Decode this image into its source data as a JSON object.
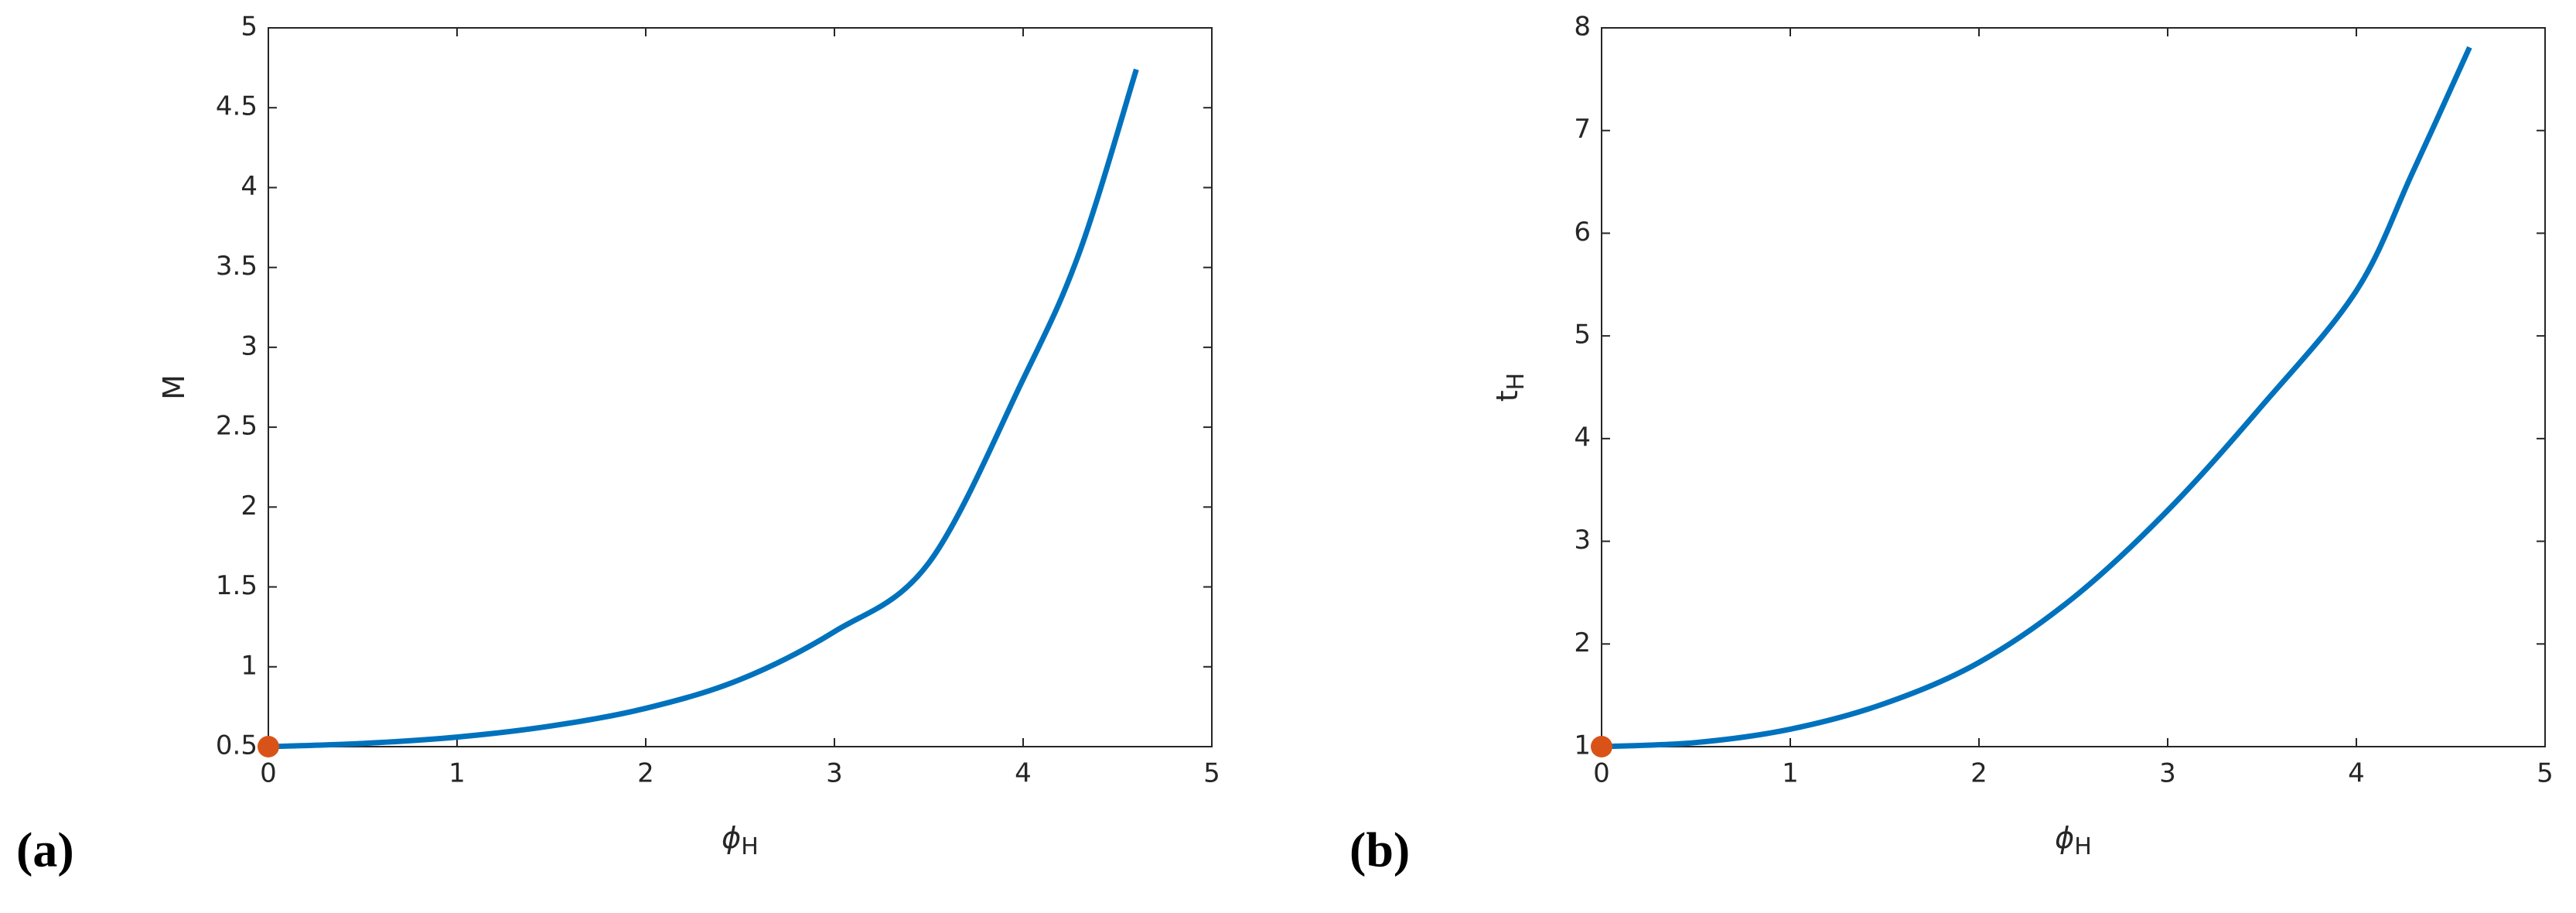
{
  "chart_data": [
    {
      "type": "line",
      "panel_label": "(a)",
      "xlabel": "ϕ",
      "xlabel_sub": "H",
      "ylabel": "M",
      "xlim": [
        0,
        5
      ],
      "xticks": [
        0,
        1,
        2,
        3,
        4,
        5
      ],
      "ylim": [
        0.5,
        5
      ],
      "yticks": [
        0.5,
        1,
        1.5,
        2,
        2.5,
        3,
        3.5,
        4,
        4.5,
        5
      ],
      "series": [
        {
          "color": "#0072bd",
          "x": [
            0,
            0.5,
            1,
            1.5,
            2,
            2.5,
            3,
            3.5,
            4,
            4.3,
            4.6
          ],
          "values": [
            0.5,
            0.52,
            0.56,
            0.63,
            0.74,
            0.92,
            1.22,
            1.65,
            2.8,
            3.6,
            4.74
          ]
        },
        {
          "color": "#d95319",
          "marker": "circle",
          "x": [
            0
          ],
          "values": [
            0.5
          ]
        }
      ]
    },
    {
      "type": "line",
      "panel_label": "(b)",
      "xlabel": "ϕ",
      "xlabel_sub": "H",
      "ylabel": "t",
      "ylabel_sub": "H",
      "xlim": [
        0,
        5
      ],
      "xticks": [
        0,
        1,
        2,
        3,
        4,
        5
      ],
      "ylim": [
        1,
        8
      ],
      "yticks": [
        1,
        2,
        3,
        4,
        5,
        6,
        7,
        8
      ],
      "series": [
        {
          "color": "#0072bd",
          "x": [
            0,
            0.5,
            1,
            1.5,
            2,
            2.5,
            3,
            3.5,
            4,
            4.3,
            4.6
          ],
          "values": [
            1,
            1.04,
            1.17,
            1.42,
            1.82,
            2.45,
            3.3,
            4.32,
            5.44,
            6.6,
            7.81
          ]
        },
        {
          "color": "#d95319",
          "marker": "circle",
          "x": [
            0
          ],
          "values": [
            1
          ]
        }
      ]
    }
  ]
}
